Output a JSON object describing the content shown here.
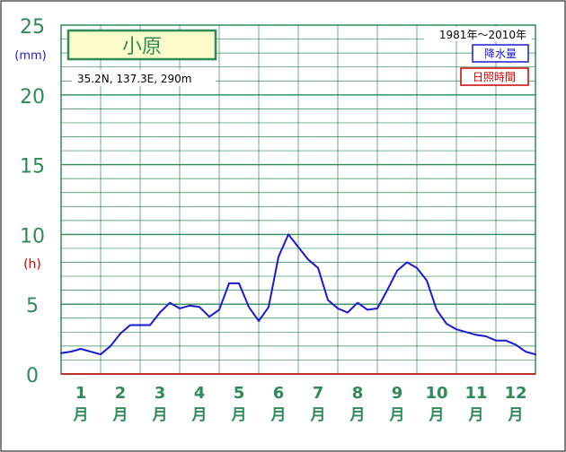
{
  "station": {
    "name": "小原",
    "coords": "35.2N,  137.3E,  290m",
    "period": "1981年～2010年"
  },
  "legend": {
    "precip_label": "降水量",
    "sunshine_label": "日照時間"
  },
  "axes": {
    "left_unit_mm": "(mm)",
    "left_unit_h": "(h)",
    "y_ticks": [
      "0",
      "5",
      "10",
      "15",
      "20",
      "25"
    ],
    "month_numbers": [
      "1",
      "2",
      "3",
      "4",
      "5",
      "6",
      "7",
      "8",
      "9",
      "10",
      "11",
      "12"
    ],
    "month_suffix": "月"
  },
  "colors": {
    "frame": "#2e8b57",
    "grid": "#2e8b57",
    "axis_label": "#2e8b57",
    "precip_line": "#1a1ad0",
    "sunshine_text": "#cc0000",
    "title_bg": "#fffccc"
  },
  "chart_data": {
    "type": "line",
    "title": "小原",
    "ylim": [
      0,
      25
    ],
    "x_range": [
      0.5,
      12.5
    ],
    "grid": true,
    "legend_position": "top-right",
    "series": [
      {
        "name": "降水量",
        "x": [
          0.5,
          0.75,
          1.0,
          1.25,
          1.5,
          1.75,
          2.0,
          2.25,
          2.5,
          2.75,
          3.0,
          3.25,
          3.5,
          3.75,
          4.0,
          4.25,
          4.5,
          4.75,
          5.0,
          5.25,
          5.5,
          5.75,
          6.0,
          6.25,
          6.5,
          6.75,
          7.0,
          7.25,
          7.5,
          7.75,
          8.0,
          8.25,
          8.5,
          8.75,
          9.0,
          9.25,
          9.5,
          9.75,
          10.0,
          10.25,
          10.5,
          10.75,
          11.0,
          11.25,
          11.5,
          11.75,
          12.0,
          12.25,
          12.5
        ],
        "values": [
          1.5,
          1.6,
          1.8,
          1.6,
          1.4,
          2.0,
          2.9,
          3.5,
          3.5,
          3.5,
          4.4,
          5.1,
          4.7,
          4.9,
          4.8,
          4.1,
          4.6,
          6.5,
          6.5,
          4.8,
          3.8,
          4.8,
          8.4,
          10.0,
          9.1,
          8.2,
          7.6,
          5.3,
          4.7,
          4.4,
          5.1,
          4.6,
          4.7,
          6.0,
          7.4,
          8.0,
          7.6,
          6.7,
          4.6,
          3.6,
          3.2,
          3.0,
          2.8,
          2.7,
          2.4,
          2.4,
          2.1,
          1.6,
          1.4
        ]
      }
    ]
  }
}
